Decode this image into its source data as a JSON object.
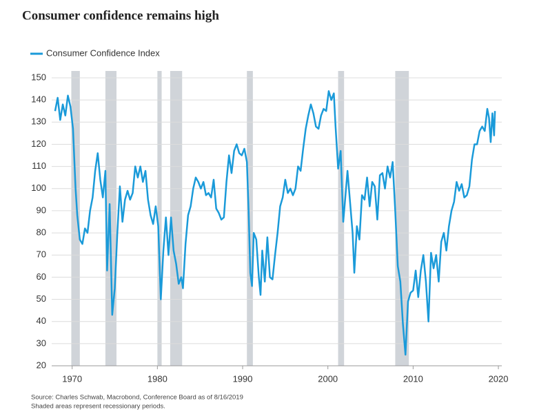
{
  "chart_data": {
    "type": "line",
    "title": "Consumer confidence remains high",
    "notes": [
      "Source: Charles Schwab, Macrobond, Conference Board as of 8/16/2019",
      "Shaded areas represent recessionary periods."
    ],
    "recessions": [
      [
        1969.9,
        1970.9
      ],
      [
        1973.9,
        1975.2
      ],
      [
        1980.0,
        1980.5
      ],
      [
        1981.5,
        1982.9
      ],
      [
        1990.5,
        1991.2
      ],
      [
        2001.2,
        2001.9
      ],
      [
        2007.9,
        2009.5
      ]
    ],
    "recession_color": "#d0d4d9",
    "xlim": [
      1967.6,
      2020.4
    ],
    "xticks": [
      1970,
      1980,
      1990,
      2000,
      2010,
      2020
    ],
    "ylim": [
      20,
      150
    ],
    "yticks": [
      20,
      30,
      40,
      50,
      60,
      70,
      80,
      90,
      100,
      110,
      120,
      130,
      140,
      150
    ],
    "grid": true,
    "legend": "top-left",
    "x": [
      1968.0,
      1968.3,
      1968.6,
      1968.9,
      1969.2,
      1969.5,
      1969.8,
      1970.1,
      1970.4,
      1970.6,
      1970.9,
      1971.2,
      1971.5,
      1971.8,
      1972.1,
      1972.4,
      1972.7,
      1973.0,
      1973.3,
      1973.6,
      1973.9,
      1974.1,
      1974.4,
      1974.7,
      1975.0,
      1975.3,
      1975.6,
      1975.9,
      1976.2,
      1976.5,
      1976.8,
      1977.1,
      1977.4,
      1977.7,
      1978.0,
      1978.3,
      1978.6,
      1978.9,
      1979.2,
      1979.5,
      1979.8,
      1980.1,
      1980.4,
      1980.7,
      1981.0,
      1981.3,
      1981.6,
      1981.9,
      1982.2,
      1982.5,
      1982.8,
      1983.0,
      1983.3,
      1983.6,
      1983.9,
      1984.2,
      1984.5,
      1984.8,
      1985.1,
      1985.4,
      1985.7,
      1986.0,
      1986.3,
      1986.6,
      1986.9,
      1987.2,
      1987.5,
      1987.8,
      1988.1,
      1988.4,
      1988.7,
      1989.0,
      1989.3,
      1989.6,
      1989.9,
      1990.2,
      1990.5,
      1990.7,
      1990.9,
      1991.1,
      1991.3,
      1991.6,
      1991.9,
      1992.1,
      1992.3,
      1992.6,
      1992.9,
      1993.2,
      1993.5,
      1993.8,
      1994.1,
      1994.4,
      1994.7,
      1995.0,
      1995.3,
      1995.6,
      1995.9,
      1996.2,
      1996.5,
      1996.8,
      1997.1,
      1997.4,
      1997.7,
      1998.0,
      1998.3,
      1998.6,
      1998.9,
      1999.2,
      1999.5,
      1999.8,
      2000.1,
      2000.4,
      2000.7,
      2000.9,
      2001.2,
      2001.5,
      2001.8,
      2002.0,
      2002.3,
      2002.6,
      2002.9,
      2003.1,
      2003.4,
      2003.7,
      2004.0,
      2004.3,
      2004.6,
      2004.9,
      2005.2,
      2005.5,
      2005.8,
      2006.1,
      2006.4,
      2006.7,
      2007.0,
      2007.3,
      2007.6,
      2007.9,
      2008.2,
      2008.5,
      2008.8,
      2009.1,
      2009.4,
      2009.7,
      2010.0,
      2010.3,
      2010.6,
      2010.9,
      2011.2,
      2011.5,
      2011.8,
      2012.1,
      2012.4,
      2012.7,
      2013.0,
      2013.3,
      2013.6,
      2013.9,
      2014.2,
      2014.5,
      2014.8,
      2015.1,
      2015.4,
      2015.7,
      2016.0,
      2016.3,
      2016.6,
      2016.9,
      2017.2,
      2017.5,
      2017.8,
      2018.1,
      2018.4,
      2018.7,
      2018.9,
      2019.1,
      2019.3,
      2019.5,
      2019.6
    ],
    "series": [
      {
        "name": "Consumer Confidence Index",
        "color": "#1a9ad9",
        "values": [
          135,
          141,
          131,
          138,
          133,
          142,
          137,
          127,
          100,
          88,
          77,
          75,
          82,
          80,
          90,
          96,
          108,
          116,
          104,
          96,
          108,
          63,
          93,
          43,
          55,
          80,
          101,
          85,
          95,
          99,
          95,
          98,
          110,
          105,
          110,
          103,
          108,
          95,
          88,
          84,
          92,
          83,
          50,
          72,
          87,
          70,
          87,
          72,
          66,
          57,
          60,
          55,
          75,
          88,
          92,
          100,
          105,
          103,
          100,
          103,
          97,
          98,
          96,
          104,
          91,
          89,
          86,
          87,
          103,
          115,
          107,
          117,
          120,
          116,
          115,
          118,
          112,
          90,
          62,
          56,
          80,
          77,
          60,
          52,
          72,
          58,
          78,
          60,
          59,
          70,
          80,
          92,
          96,
          104,
          98,
          100,
          97,
          100,
          110,
          108,
          118,
          127,
          133,
          138,
          134,
          128,
          127,
          133,
          136,
          135,
          144,
          140,
          143,
          128,
          109,
          117,
          85,
          94,
          108,
          94,
          80,
          62,
          83,
          77,
          97,
          95,
          105,
          92,
          103,
          101,
          86,
          106,
          107,
          100,
          110,
          105,
          112,
          90,
          65,
          58,
          39,
          25,
          49,
          53,
          54,
          63,
          51,
          63,
          70,
          58,
          40,
          71,
          64,
          70,
          58,
          76,
          80,
          72,
          83,
          90,
          94,
          103,
          99,
          102,
          96,
          97,
          101,
          113,
          120,
          120,
          126,
          128,
          126,
          136,
          132,
          121,
          134,
          124,
          135
        ]
      }
    ]
  }
}
